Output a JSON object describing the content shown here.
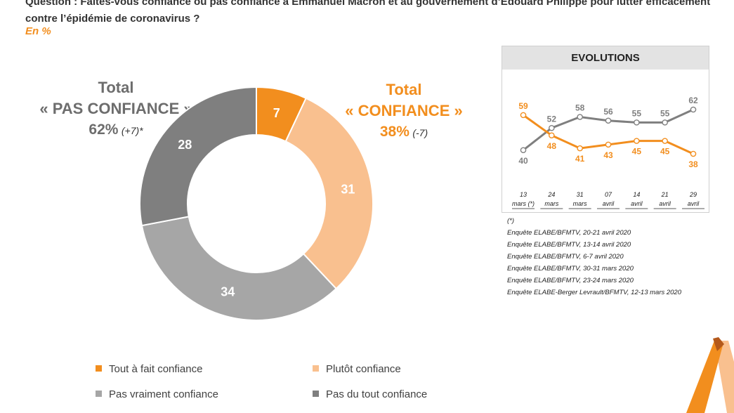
{
  "question": "Question : Faites-vous confiance ou pas confiance à Emmanuel Macron et au gouvernement d’Edouard Philippe pour lutter efficacement contre l’épidémie de coronavirus ?",
  "unit": "En %",
  "totals": {
    "negative": {
      "line1": "Total",
      "line2": "« PAS CONFIANCE »",
      "value": "62%",
      "change": "(+7)*"
    },
    "positive": {
      "line1": "Total",
      "line2": "« CONFIANCE »",
      "value": "38%",
      "change": "(-7)"
    }
  },
  "colors": {
    "tout_a_fait": "#f28e1e",
    "plutot": "#f9c08f",
    "pas_vraiment": "#a6a6a6",
    "pas_du_tout": "#7f7f7f"
  },
  "legend": [
    {
      "label": "Tout à fait confiance",
      "color": "#f28e1e"
    },
    {
      "label": "Plutôt confiance",
      "color": "#f9c08f"
    },
    {
      "label": "Pas vraiment confiance",
      "color": "#a6a6a6"
    },
    {
      "label": "Pas du tout confiance",
      "color": "#7f7f7f"
    }
  ],
  "evolutions": {
    "title": "EVOLUTIONS",
    "footnote_marker": "(*)",
    "notes": [
      "Enquête ELABE/BFMTV, 20-21 avril 2020",
      "Enquête ELABE/BFMTV, 13-14 avril 2020",
      "Enquête ELABE/BFMTV, 6-7 avril 2020",
      "Enquête ELABE/BFMTV, 30-31 mars 2020",
      "Enquête ELABE/BFMTV, 23-24 mars 2020",
      "Enquête ELABE-Berger Levrault/BFMTV, 12-13 mars 2020"
    ]
  },
  "chart_data": [
    {
      "type": "pie",
      "variant": "donut",
      "categories": [
        "Tout à fait confiance",
        "Plutôt confiance",
        "Pas vraiment confiance",
        "Pas du tout confiance"
      ],
      "values": [
        7,
        31,
        34,
        28
      ],
      "colors": [
        "#f28e1e",
        "#f9c08f",
        "#a6a6a6",
        "#7f7f7f"
      ],
      "legend": "bottom"
    },
    {
      "type": "line",
      "title": "EVOLUTIONS",
      "categories": [
        [
          "13",
          "mars (*)"
        ],
        [
          "24",
          "mars"
        ],
        [
          "31",
          "mars"
        ],
        [
          "07",
          "avril"
        ],
        [
          "14",
          "avril"
        ],
        [
          "21",
          "avril"
        ],
        [
          "29",
          "avril"
        ]
      ],
      "series": [
        {
          "values": [
            59,
            48,
            41,
            43,
            45,
            45,
            38
          ],
          "color": "#f28e1e"
        },
        {
          "values": [
            40,
            52,
            58,
            56,
            55,
            55,
            62
          ],
          "color": "#7f7f7f"
        }
      ],
      "ylim": [
        30,
        70
      ],
      "grid": false
    }
  ]
}
